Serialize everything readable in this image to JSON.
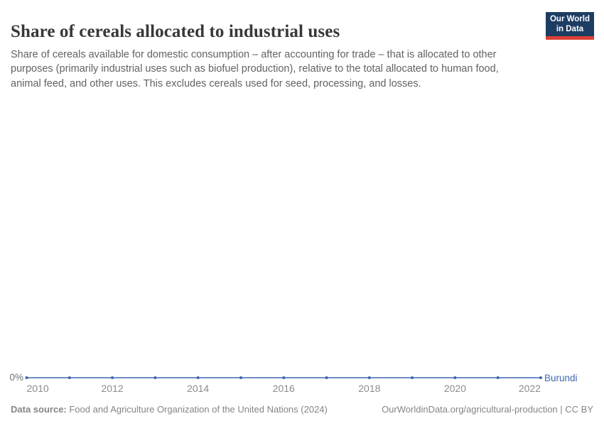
{
  "header": {
    "title": "Share of cereals allocated to industrial uses",
    "subtitle": "Share of cereals available for domestic consumption – after accounting for trade – that is allocated to other purposes (primarily industrial uses such as biofuel production), relative to the total allocated to human food, animal feed, and other uses. This excludes cereals used for seed, processing, and losses.",
    "logo": {
      "line1": "Our World",
      "line2": "in Data",
      "bg_color": "#1d3d63",
      "accent_color": "#dc3f38"
    }
  },
  "chart_data": {
    "type": "line",
    "title": "Share of cereals allocated to industrial uses",
    "xlabel": "",
    "ylabel": "",
    "xlim": [
      2010,
      2022
    ],
    "ylim": [
      0,
      1
    ],
    "grid": false,
    "legend_position": "end-of-line",
    "x_ticks": [
      2010,
      2012,
      2014,
      2016,
      2018,
      2020,
      2022
    ],
    "y_ticks": [
      "0%"
    ],
    "series": [
      {
        "name": "Burundi",
        "color": "#3e66b0",
        "x": [
          2010,
          2011,
          2012,
          2013,
          2014,
          2015,
          2016,
          2017,
          2018,
          2019,
          2020,
          2021,
          2022
        ],
        "values": [
          0,
          0,
          0,
          0,
          0,
          0,
          0,
          0,
          0,
          0,
          0,
          0,
          0
        ]
      }
    ]
  },
  "footer": {
    "datasource_label": "Data source:",
    "datasource_text": " Food and Agriculture Organization of the United Nations (2024)",
    "rights": "OurWorldinData.org/agricultural-production | CC BY"
  }
}
